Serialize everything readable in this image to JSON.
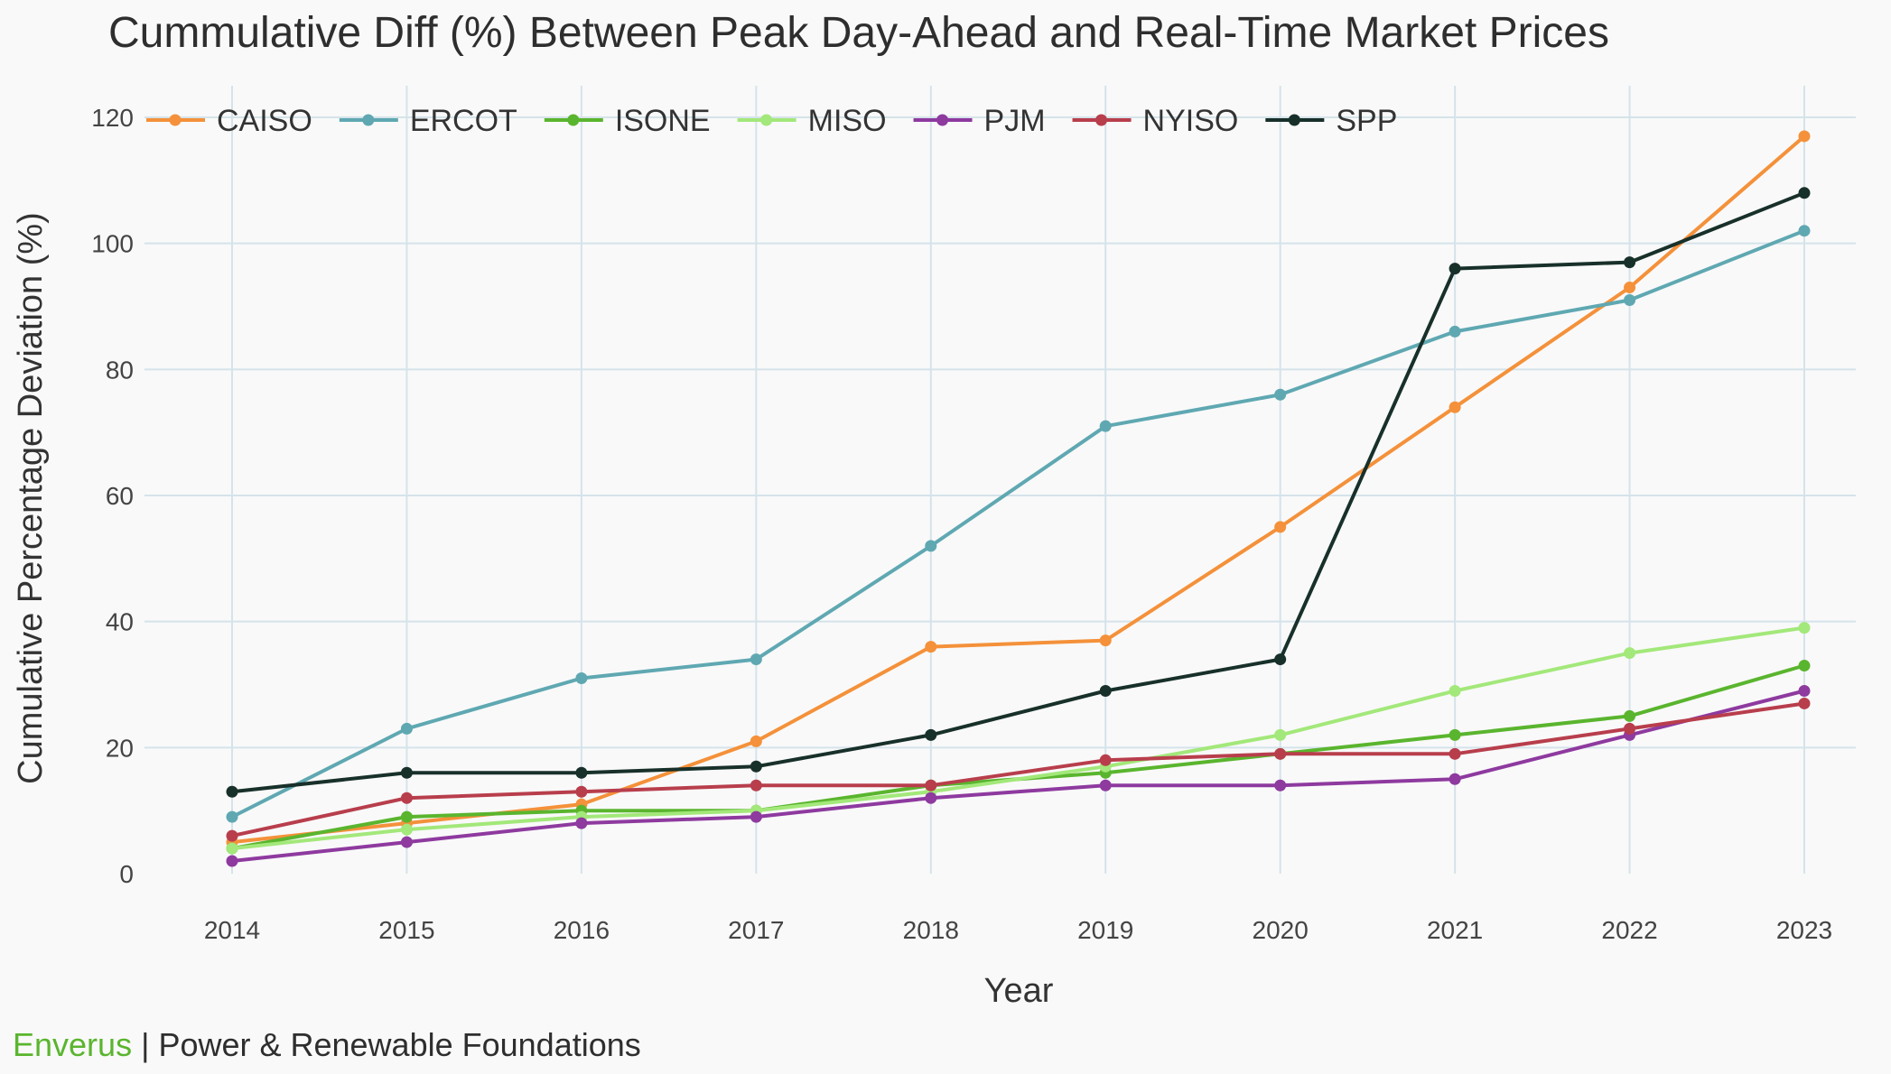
{
  "chart_data": {
    "type": "line",
    "title": "Cummulative Diff (%) Between Peak Day-Ahead and Real-Time Market Prices",
    "xlabel": "Year",
    "ylabel": "Cumulative Percentage Deviation (%)",
    "x": [
      2014,
      2015,
      2016,
      2017,
      2018,
      2019,
      2020,
      2021,
      2022,
      2023
    ],
    "ylim": [
      0,
      120
    ],
    "yticks": [
      0,
      20,
      40,
      60,
      80,
      100,
      120
    ],
    "grid": true,
    "legend_position": "top-left",
    "series": [
      {
        "name": "CAISO",
        "color": "#f4913a",
        "values": [
          5,
          8,
          11,
          21,
          36,
          37,
          55,
          74,
          93,
          117
        ]
      },
      {
        "name": "ERCOT",
        "color": "#5fa8b2",
        "values": [
          9,
          23,
          31,
          34,
          52,
          71,
          76,
          86,
          91,
          102
        ]
      },
      {
        "name": "ISONE",
        "color": "#5ab52e",
        "values": [
          4,
          9,
          10,
          10,
          14,
          16,
          19,
          22,
          25,
          33
        ]
      },
      {
        "name": "MISO",
        "color": "#a3e87a",
        "values": [
          4,
          7,
          9,
          10,
          13,
          17,
          22,
          29,
          35,
          39
        ]
      },
      {
        "name": "PJM",
        "color": "#8e3a9f",
        "values": [
          2,
          5,
          8,
          9,
          12,
          14,
          14,
          15,
          22,
          29
        ]
      },
      {
        "name": "NYISO",
        "color": "#b83e4c",
        "values": [
          6,
          12,
          13,
          14,
          14,
          18,
          19,
          19,
          23,
          27
        ]
      },
      {
        "name": "SPP",
        "color": "#18302a",
        "values": [
          13,
          16,
          16,
          17,
          22,
          29,
          34,
          96,
          97,
          108
        ]
      }
    ]
  },
  "footer": {
    "brand": "Enverus",
    "separator": " | ",
    "text": "Power & Renewable Foundations"
  }
}
